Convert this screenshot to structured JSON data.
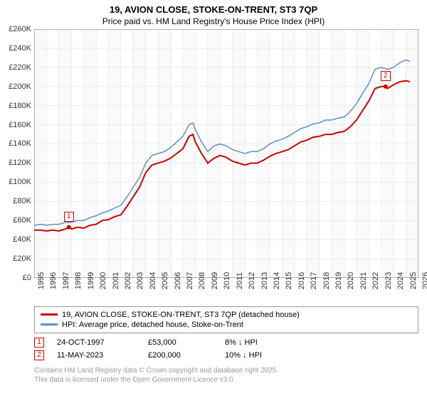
{
  "title_line1": "19, AVION CLOSE, STOKE-ON-TRENT, ST3 7QP",
  "title_line2": "Price paid vs. HM Land Registry's House Price Index (HPI)",
  "chart": {
    "type": "line",
    "background_color": "#ffffff",
    "plot_background_color": "#f5f6f8",
    "plot_background_opacity": 0.5,
    "grid_color": "#d8dde3",
    "axis_color": "#666666",
    "x_years": [
      1995,
      1996,
      1997,
      1998,
      1999,
      2000,
      2001,
      2002,
      2003,
      2004,
      2005,
      2006,
      2007,
      2008,
      2009,
      2010,
      2011,
      2012,
      2013,
      2014,
      2015,
      2016,
      2017,
      2018,
      2019,
      2020,
      2021,
      2022,
      2023,
      2024,
      2025,
      2026
    ],
    "x_min": 1995,
    "x_max": 2026,
    "ylim": [
      0,
      260000
    ],
    "ytick_step": 20000,
    "y_ticks": [
      0,
      20000,
      40000,
      60000,
      80000,
      100000,
      120000,
      140000,
      160000,
      180000,
      200000,
      220000,
      240000,
      260000
    ],
    "y_tick_labels": [
      "£0",
      "£20K",
      "£40K",
      "£60K",
      "£80K",
      "£100K",
      "£120K",
      "£140K",
      "£160K",
      "£180K",
      "£200K",
      "£220K",
      "£240K",
      "£260K"
    ],
    "label_fontsize": 11,
    "series": [
      {
        "name": "price_paid",
        "label": "19, AVION CLOSE, STOKE-ON-TRENT, ST3 7QP (detached house)",
        "color": "#cc0000",
        "line_width": 2,
        "data": [
          [
            1995.0,
            50000
          ],
          [
            1995.5,
            50000
          ],
          [
            1996.0,
            49000
          ],
          [
            1996.5,
            50000
          ],
          [
            1997.0,
            49000
          ],
          [
            1997.5,
            51000
          ],
          [
            1997.8,
            53000
          ],
          [
            1998.0,
            51000
          ],
          [
            1998.5,
            53000
          ],
          [
            1999.0,
            52000
          ],
          [
            1999.5,
            55000
          ],
          [
            2000.0,
            56000
          ],
          [
            2000.5,
            60000
          ],
          [
            2001.0,
            61000
          ],
          [
            2001.5,
            64000
          ],
          [
            2002.0,
            66000
          ],
          [
            2002.5,
            75000
          ],
          [
            2003.0,
            85000
          ],
          [
            2003.5,
            95000
          ],
          [
            2004.0,
            110000
          ],
          [
            2004.5,
            118000
          ],
          [
            2005.0,
            120000
          ],
          [
            2005.5,
            122000
          ],
          [
            2006.0,
            125000
          ],
          [
            2006.5,
            130000
          ],
          [
            2007.0,
            135000
          ],
          [
            2007.5,
            148000
          ],
          [
            2007.8,
            150000
          ],
          [
            2008.0,
            142000
          ],
          [
            2008.5,
            130000
          ],
          [
            2009.0,
            120000
          ],
          [
            2009.5,
            125000
          ],
          [
            2010.0,
            128000
          ],
          [
            2010.5,
            126000
          ],
          [
            2011.0,
            122000
          ],
          [
            2011.5,
            120000
          ],
          [
            2012.0,
            118000
          ],
          [
            2012.5,
            120000
          ],
          [
            2013.0,
            120000
          ],
          [
            2013.5,
            123000
          ],
          [
            2014.0,
            127000
          ],
          [
            2014.5,
            130000
          ],
          [
            2015.0,
            132000
          ],
          [
            2015.5,
            134000
          ],
          [
            2016.0,
            138000
          ],
          [
            2016.5,
            142000
          ],
          [
            2017.0,
            144000
          ],
          [
            2017.5,
            147000
          ],
          [
            2018.0,
            148000
          ],
          [
            2018.5,
            150000
          ],
          [
            2019.0,
            150000
          ],
          [
            2019.5,
            152000
          ],
          [
            2020.0,
            153000
          ],
          [
            2020.5,
            158000
          ],
          [
            2021.0,
            165000
          ],
          [
            2021.5,
            175000
          ],
          [
            2022.0,
            185000
          ],
          [
            2022.5,
            198000
          ],
          [
            2023.0,
            200000
          ],
          [
            2023.35,
            200000
          ],
          [
            2023.5,
            198000
          ],
          [
            2024.0,
            202000
          ],
          [
            2024.5,
            205000
          ],
          [
            2025.0,
            206000
          ],
          [
            2025.3,
            205000
          ]
        ]
      },
      {
        "name": "hpi",
        "label": "HPI: Average price, detached house, Stoke-on-Trent",
        "color": "#5b8fc7",
        "line_width": 1.5,
        "data": [
          [
            1995.0,
            55000
          ],
          [
            1995.5,
            56000
          ],
          [
            1996.0,
            55000
          ],
          [
            1996.5,
            56000
          ],
          [
            1997.0,
            56000
          ],
          [
            1997.5,
            58000
          ],
          [
            1998.0,
            58000
          ],
          [
            1998.5,
            60000
          ],
          [
            1999.0,
            60000
          ],
          [
            1999.5,
            63000
          ],
          [
            2000.0,
            65000
          ],
          [
            2000.5,
            68000
          ],
          [
            2001.0,
            70000
          ],
          [
            2001.5,
            73000
          ],
          [
            2002.0,
            76000
          ],
          [
            2002.5,
            85000
          ],
          [
            2003.0,
            95000
          ],
          [
            2003.5,
            105000
          ],
          [
            2004.0,
            120000
          ],
          [
            2004.5,
            128000
          ],
          [
            2005.0,
            130000
          ],
          [
            2005.5,
            132000
          ],
          [
            2006.0,
            136000
          ],
          [
            2006.5,
            142000
          ],
          [
            2007.0,
            148000
          ],
          [
            2007.5,
            160000
          ],
          [
            2007.8,
            162000
          ],
          [
            2008.0,
            155000
          ],
          [
            2008.5,
            142000
          ],
          [
            2009.0,
            132000
          ],
          [
            2009.5,
            138000
          ],
          [
            2010.0,
            140000
          ],
          [
            2010.5,
            138000
          ],
          [
            2011.0,
            134000
          ],
          [
            2011.5,
            132000
          ],
          [
            2012.0,
            130000
          ],
          [
            2012.5,
            132000
          ],
          [
            2013.0,
            132000
          ],
          [
            2013.5,
            135000
          ],
          [
            2014.0,
            140000
          ],
          [
            2014.5,
            143000
          ],
          [
            2015.0,
            145000
          ],
          [
            2015.5,
            148000
          ],
          [
            2016.0,
            152000
          ],
          [
            2016.5,
            156000
          ],
          [
            2017.0,
            158000
          ],
          [
            2017.5,
            161000
          ],
          [
            2018.0,
            162000
          ],
          [
            2018.5,
            165000
          ],
          [
            2019.0,
            165000
          ],
          [
            2019.5,
            167000
          ],
          [
            2020.0,
            168000
          ],
          [
            2020.5,
            174000
          ],
          [
            2021.0,
            182000
          ],
          [
            2021.5,
            193000
          ],
          [
            2022.0,
            203000
          ],
          [
            2022.5,
            218000
          ],
          [
            2023.0,
            220000
          ],
          [
            2023.5,
            218000
          ],
          [
            2024.0,
            220000
          ],
          [
            2024.5,
            225000
          ],
          [
            2025.0,
            228000
          ],
          [
            2025.3,
            226000
          ]
        ]
      }
    ],
    "markers": [
      {
        "id": "1",
        "x": 1997.8,
        "y": 53000,
        "dot_color": "#cc0000"
      },
      {
        "id": "2",
        "x": 2023.35,
        "y": 200000,
        "dot_color": "#cc0000"
      }
    ]
  },
  "legend": {
    "items": [
      {
        "color": "#cc0000",
        "label": "19, AVION CLOSE, STOKE-ON-TRENT, ST3 7QP (detached house)"
      },
      {
        "color": "#5b8fc7",
        "label": "HPI: Average price, detached house, Stoke-on-Trent"
      }
    ]
  },
  "transactions": [
    {
      "marker": "1",
      "date": "24-OCT-1997",
      "price": "£53,000",
      "pct": "8% ↓ HPI"
    },
    {
      "marker": "2",
      "date": "11-MAY-2023",
      "price": "£200,000",
      "pct": "10% ↓ HPI"
    }
  ],
  "footer_line1": "Contains HM Land Registry data © Crown copyright and database right 2025.",
  "footer_line2": "This data is licensed under the Open Government Licence v3.0."
}
